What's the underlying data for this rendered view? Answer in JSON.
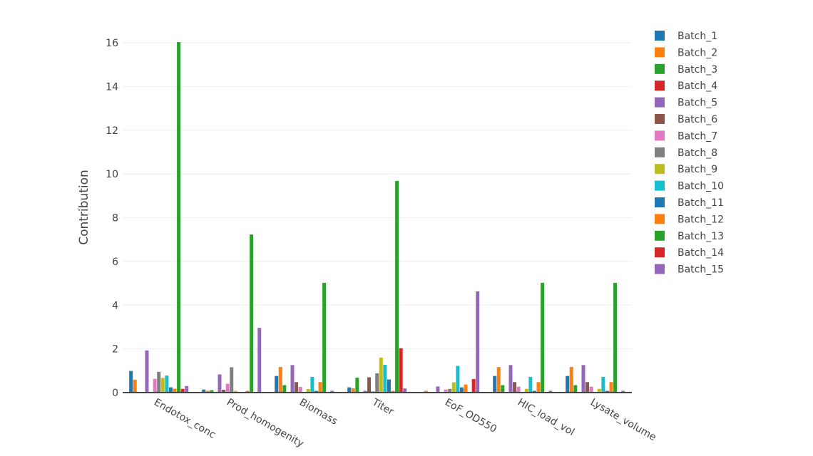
{
  "chart_data": {
    "type": "bar",
    "barmode": "group",
    "title": "",
    "xlabel": "",
    "ylabel": "Contribution",
    "ylim": [
      0,
      16.5
    ],
    "yticks": [
      0,
      2,
      4,
      6,
      8,
      10,
      12,
      14,
      16
    ],
    "grid": true,
    "legend_position": "right",
    "categories": [
      "Endotox_conc",
      "Prod_homogenity",
      "Biomass",
      "Titer",
      "EoF_OD550",
      "HIC_load_vol",
      "Lysate_volume"
    ],
    "series": [
      {
        "name": "Batch_1",
        "color": "#1f77b4",
        "values": [
          0.99,
          0.14,
          0.76,
          0.24,
          0.03,
          0.76,
          0.76
        ]
      },
      {
        "name": "Batch_2",
        "color": "#ff7f0e",
        "values": [
          0.59,
          0.08,
          1.17,
          0.2,
          0.08,
          1.17,
          1.17
        ]
      },
      {
        "name": "Batch_3",
        "color": "#2ca02c",
        "values": [
          0.02,
          0.11,
          0.34,
          0.68,
          0.03,
          0.34,
          0.34
        ]
      },
      {
        "name": "Batch_4",
        "color": "#d62728",
        "values": [
          0.03,
          0.02,
          0.03,
          0.02,
          0.03,
          0.02,
          0.02
        ]
      },
      {
        "name": "Batch_5",
        "color": "#9467bd",
        "values": [
          1.93,
          0.83,
          1.26,
          0.08,
          0.28,
          1.26,
          1.26
        ]
      },
      {
        "name": "Batch_6",
        "color": "#8c564b",
        "values": [
          0.02,
          0.13,
          0.48,
          0.7,
          0.03,
          0.48,
          0.48
        ]
      },
      {
        "name": "Batch_7",
        "color": "#e377c2",
        "values": [
          0.63,
          0.4,
          0.26,
          0.06,
          0.14,
          0.27,
          0.27
        ]
      },
      {
        "name": "Batch_8",
        "color": "#7f7f7f",
        "values": [
          0.95,
          1.16,
          0.02,
          0.88,
          0.17,
          0.02,
          0.02
        ]
      },
      {
        "name": "Batch_9",
        "color": "#bcbd22",
        "values": [
          0.67,
          0.08,
          0.16,
          1.6,
          0.47,
          0.17,
          0.17
        ]
      },
      {
        "name": "Batch_10",
        "color": "#17becf",
        "values": [
          0.78,
          0.03,
          0.72,
          1.27,
          1.22,
          0.72,
          0.72
        ]
      },
      {
        "name": "Batch_11",
        "color": "#1f77b4",
        "values": [
          0.24,
          0.03,
          0.08,
          0.6,
          0.24,
          0.08,
          0.08
        ]
      },
      {
        "name": "Batch_12",
        "color": "#ff7f0e",
        "values": [
          0.18,
          0.08,
          0.48,
          0.08,
          0.37,
          0.48,
          0.48
        ]
      },
      {
        "name": "Batch_13",
        "color": "#2ca02c",
        "values": [
          16.03,
          7.23,
          5.02,
          9.68,
          0.02,
          5.02,
          5.02
        ]
      },
      {
        "name": "Batch_14",
        "color": "#d62728",
        "values": [
          0.17,
          0.02,
          0.02,
          2.03,
          0.62,
          0.02,
          0.02
        ]
      },
      {
        "name": "Batch_15",
        "color": "#9467bd",
        "values": [
          0.3,
          2.96,
          0.08,
          0.19,
          4.63,
          0.08,
          0.08
        ]
      }
    ]
  }
}
